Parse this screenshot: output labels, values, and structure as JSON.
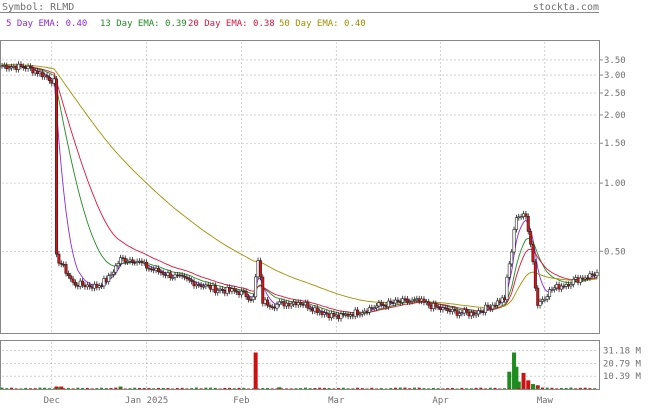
{
  "header": {
    "symbol_label": "Symbol: RLMD",
    "site": "stockta.com"
  },
  "legend": [
    {
      "label": "5 Day EMA: 0.40",
      "color": "#8a2be2"
    },
    {
      "label": "13 Day EMA: 0.39",
      "color": "#228b22"
    },
    {
      "label": "20 Day EMA: 0.38",
      "color": "#dc143c"
    },
    {
      "label": "50 Day EMA: 0.40",
      "color": "#a09000"
    }
  ],
  "colors": {
    "up": "#ffffff",
    "down": "#dd1111",
    "vol_up": "#1e8c1e",
    "vol_down": "#cc1111",
    "grid": "#b4b4b4",
    "axis": "#888888"
  },
  "chart_data": {
    "type": "candlestick",
    "scale": "log",
    "ylim": [
      0.22,
      4.2
    ],
    "y_ticks": [
      "3.50",
      "3.00",
      "2.50",
      "2.00",
      "1.50",
      "1.00",
      "0.50"
    ],
    "y_tick_values": [
      3.5,
      3.0,
      2.5,
      2.0,
      1.5,
      1.0,
      0.5
    ],
    "x_labels": [
      "Dec",
      "Jan 2025",
      "Feb",
      "Mar",
      "Apr",
      "Maw"
    ],
    "x_label_days": [
      21,
      61,
      101,
      141,
      185,
      229
    ],
    "days": 251,
    "price_keypoints": [
      [
        0,
        3.3
      ],
      [
        10,
        3.25
      ],
      [
        15,
        3.1
      ],
      [
        20,
        2.9
      ],
      [
        22,
        2.8
      ],
      [
        23,
        0.47
      ],
      [
        25,
        0.44
      ],
      [
        30,
        0.36
      ],
      [
        40,
        0.35
      ],
      [
        45,
        0.38
      ],
      [
        50,
        0.46
      ],
      [
        56,
        0.46
      ],
      [
        62,
        0.42
      ],
      [
        75,
        0.38
      ],
      [
        90,
        0.34
      ],
      [
        100,
        0.33
      ],
      [
        106,
        0.31
      ],
      [
        108,
        0.45
      ],
      [
        110,
        0.3
      ],
      [
        115,
        0.29
      ],
      [
        125,
        0.3
      ],
      [
        135,
        0.27
      ],
      [
        142,
        0.255
      ],
      [
        150,
        0.27
      ],
      [
        160,
        0.29
      ],
      [
        170,
        0.3
      ],
      [
        176,
        0.3
      ],
      [
        184,
        0.28
      ],
      [
        190,
        0.27
      ],
      [
        198,
        0.265
      ],
      [
        204,
        0.28
      ],
      [
        212,
        0.31
      ],
      [
        215,
        0.5
      ],
      [
        217,
        0.72
      ],
      [
        221,
        0.71
      ],
      [
        223,
        0.55
      ],
      [
        225,
        0.35
      ],
      [
        226,
        0.29
      ],
      [
        228,
        0.31
      ],
      [
        232,
        0.34
      ],
      [
        238,
        0.36
      ],
      [
        244,
        0.38
      ],
      [
        251,
        0.4
      ]
    ],
    "volume": {
      "ticks": [
        "31.18 M",
        "20.79 M",
        "10.39 M"
      ],
      "tick_values": [
        31.18,
        20.79,
        10.39
      ],
      "ymax": 38,
      "spikes": [
        [
          23,
          2,
          "down"
        ],
        [
          25,
          2,
          "down"
        ],
        [
          50,
          2,
          "up"
        ],
        [
          107,
          29.5,
          "down"
        ],
        [
          117,
          1.4,
          "up"
        ],
        [
          214,
          14,
          "up"
        ],
        [
          216,
          29.5,
          "up"
        ],
        [
          217,
          18,
          "up"
        ],
        [
          218,
          6,
          "up"
        ],
        [
          220,
          13,
          "down"
        ],
        [
          222,
          7,
          "down"
        ],
        [
          224,
          4,
          "up"
        ],
        [
          226,
          3,
          "down"
        ]
      ]
    }
  }
}
